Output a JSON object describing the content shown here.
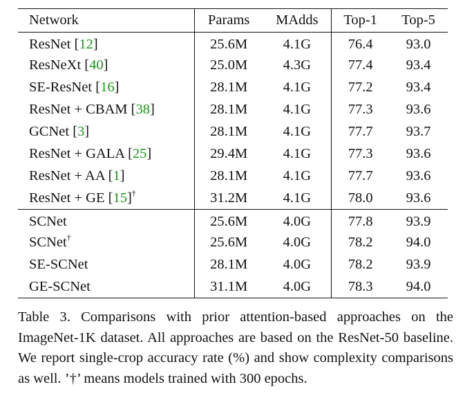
{
  "table": {
    "headers": [
      "Network",
      "Params",
      "MAdds",
      "Top-1",
      "Top-5"
    ],
    "group1": [
      {
        "name": "ResNet",
        "cite": "12",
        "sup": "",
        "params": "25.6M",
        "madds": "4.1G",
        "top1": "76.4",
        "top5": "93.0"
      },
      {
        "name": "ResNeXt",
        "cite": "40",
        "sup": "",
        "params": "25.0M",
        "madds": "4.3G",
        "top1": "77.4",
        "top5": "93.4"
      },
      {
        "name": "SE-ResNet",
        "cite": "16",
        "sup": "",
        "params": "28.1M",
        "madds": "4.1G",
        "top1": "77.2",
        "top5": "93.4"
      },
      {
        "name": "ResNet + CBAM",
        "cite": "38",
        "sup": "",
        "params": "28.1M",
        "madds": "4.1G",
        "top1": "77.3",
        "top5": "93.6"
      },
      {
        "name": "GCNet",
        "cite": "3",
        "sup": "",
        "params": "28.1M",
        "madds": "4.1G",
        "top1": "77.7",
        "top5": "93.7"
      },
      {
        "name": "ResNet + GALA",
        "cite": "25",
        "sup": "",
        "params": "29.4M",
        "madds": "4.1G",
        "top1": "77.3",
        "top5": "93.6"
      },
      {
        "name": "ResNet + AA",
        "cite": "1",
        "sup": "",
        "params": "28.1M",
        "madds": "4.1G",
        "top1": "77.7",
        "top5": "93.6"
      },
      {
        "name": "ResNet + GE",
        "cite": "15",
        "sup": "†",
        "params": "31.2M",
        "madds": "4.1G",
        "top1": "78.0",
        "top5": "93.6"
      }
    ],
    "group2": [
      {
        "name": "SCNet",
        "cite": "",
        "sup": "",
        "params": "25.6M",
        "madds": "4.0G",
        "top1": "77.8",
        "top5": "93.9"
      },
      {
        "name": "SCNet",
        "cite": "",
        "sup": "†",
        "params": "25.6M",
        "madds": "4.0G",
        "top1": "78.2",
        "top5": "94.0"
      },
      {
        "name": "SE-SCNet",
        "cite": "",
        "sup": "",
        "params": "28.1M",
        "madds": "4.0G",
        "top1": "78.2",
        "top5": "93.9"
      },
      {
        "name": "GE-SCNet",
        "cite": "",
        "sup": "",
        "params": "31.1M",
        "madds": "4.0G",
        "top1": "78.3",
        "top5": "94.0"
      }
    ]
  },
  "caption": "Table 3. Comparisons with prior attention-based approaches on the ImageNet-1K dataset.  All approaches are based on the ResNet-50 baseline.  We report single-crop accuracy rate (%) and show complexity comparisons as well.  ’†’ means models trained with 300 epochs.",
  "colors": {
    "citation": "#1a9a1a",
    "text": "#111111"
  }
}
